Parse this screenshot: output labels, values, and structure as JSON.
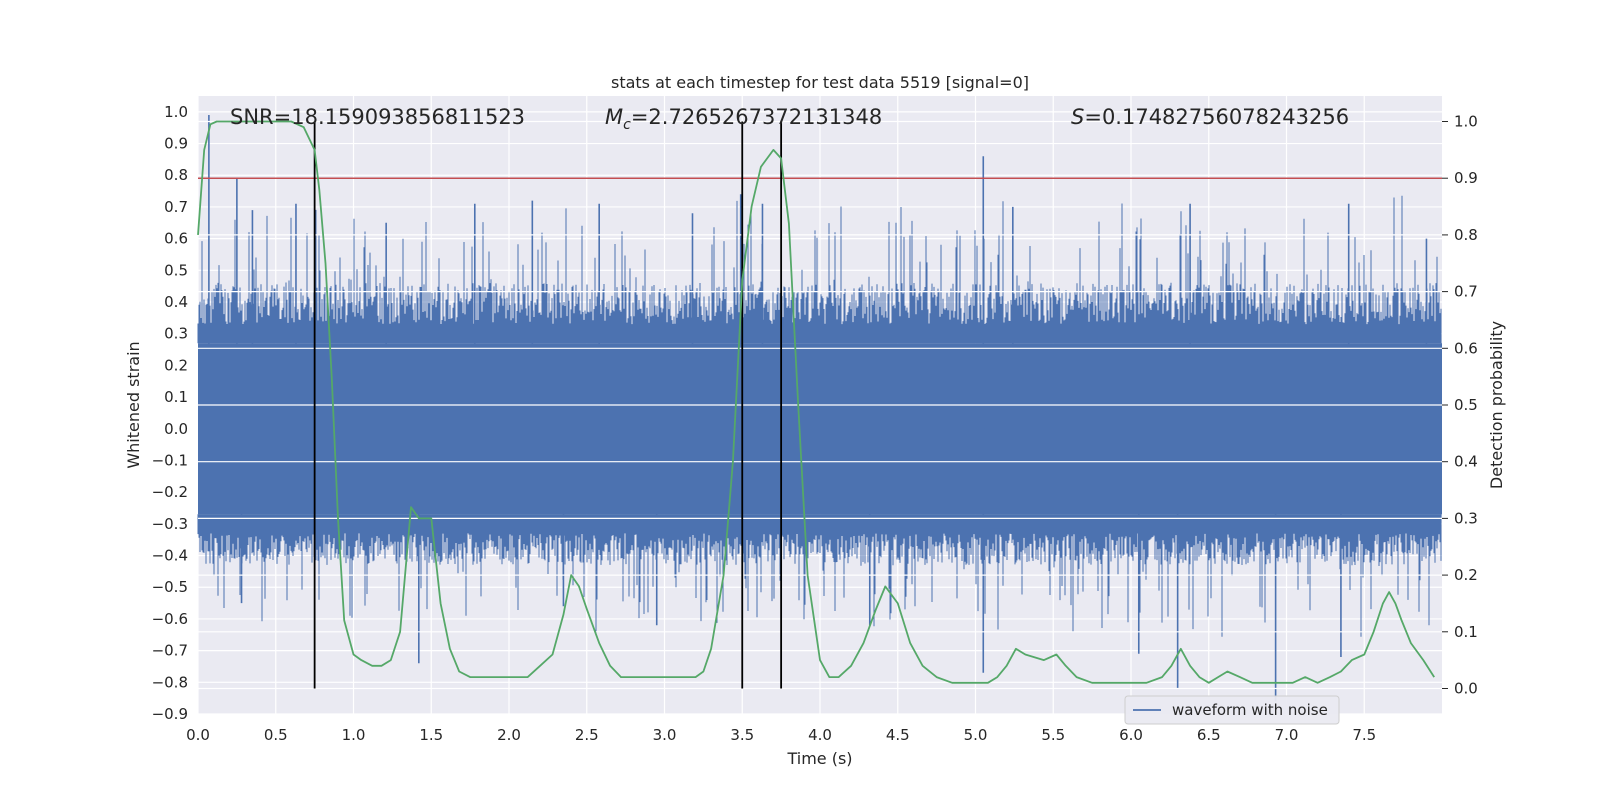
{
  "chart_data": {
    "type": "line",
    "title": "stats at each timestep for test data 5519 [signal=0]",
    "xlabel": "Time (s)",
    "ylabel": "Whitened strain",
    "y2label": "Detection probability",
    "xlim": [
      0.0,
      8.0
    ],
    "ylim": [
      -0.9,
      1.05
    ],
    "y2lim": [
      -0.045,
      1.045
    ],
    "grid": true,
    "x_ticks": [
      "0.0",
      "0.5",
      "1.0",
      "1.5",
      "2.0",
      "2.5",
      "3.0",
      "3.5",
      "4.0",
      "4.5",
      "5.0",
      "5.5",
      "6.0",
      "6.5",
      "7.0",
      "7.5"
    ],
    "y_ticks": [
      "1.0",
      "0.9",
      "0.8",
      "0.7",
      "0.6",
      "0.5",
      "0.4",
      "0.3",
      "0.2",
      "0.1",
      "0.0",
      "−0.1",
      "−0.2",
      "−0.3",
      "−0.4",
      "−0.5",
      "−0.6",
      "−0.7",
      "−0.8",
      "−0.9"
    ],
    "y2_ticks": [
      "1.0",
      "0.9",
      "0.8",
      "0.7",
      "0.6",
      "0.5",
      "0.4",
      "0.3",
      "0.2",
      "0.1",
      "0.0"
    ],
    "annotations": {
      "snr": "SNR=18.159093856811523",
      "mc_symbol": "M",
      "mc_subscript": "c",
      "mc_value": "=2.7265267372131348",
      "s_symbol": "S",
      "s_value": "=0.17482756078243256"
    },
    "legend": {
      "label": "waveform with noise",
      "placement": "lower-right"
    },
    "threshold": {
      "value": 0.9,
      "axis": "right",
      "color": "#c44e52"
    },
    "event_markers": [
      0.75,
      3.5,
      3.75
    ],
    "waveform": {
      "name": "waveform with noise",
      "color": "#4c72b0",
      "sample_rate_hz": 512,
      "core_band": [
        -0.27,
        0.27
      ],
      "spikes_high": [
        [
          0.07,
          0.99
        ],
        [
          0.25,
          0.79
        ],
        [
          0.35,
          0.69
        ],
        [
          0.63,
          0.71
        ],
        [
          1.21,
          0.65
        ],
        [
          1.78,
          0.71
        ],
        [
          2.15,
          0.72
        ],
        [
          2.58,
          0.71
        ],
        [
          3.18,
          0.68
        ],
        [
          3.49,
          0.74
        ],
        [
          3.63,
          0.71
        ],
        [
          5.05,
          0.86
        ],
        [
          5.24,
          0.7
        ],
        [
          6.38,
          0.71
        ],
        [
          7.4,
          0.71
        ],
        [
          7.9,
          0.6
        ]
      ],
      "spikes_low": [
        [
          0.28,
          -0.55
        ],
        [
          1.42,
          -0.74
        ],
        [
          2.35,
          -0.56
        ],
        [
          2.95,
          -0.62
        ],
        [
          4.32,
          -0.62
        ],
        [
          5.05,
          -0.77
        ],
        [
          6.05,
          -0.71
        ],
        [
          6.3,
          -0.82
        ],
        [
          6.93,
          -0.86
        ],
        [
          7.35,
          -0.72
        ]
      ]
    },
    "probability": {
      "color": "#55a868",
      "x": [
        0.0,
        0.04,
        0.08,
        0.12,
        0.2,
        0.3,
        0.4,
        0.5,
        0.55,
        0.6,
        0.68,
        0.75,
        0.78,
        0.82,
        0.86,
        0.9,
        0.94,
        1.0,
        1.05,
        1.12,
        1.18,
        1.24,
        1.3,
        1.37,
        1.42,
        1.5,
        1.56,
        1.62,
        1.68,
        1.75,
        1.85,
        2.0,
        2.06,
        2.12,
        2.2,
        2.28,
        2.35,
        2.4,
        2.45,
        2.5,
        2.58,
        2.65,
        2.72,
        2.8,
        2.9,
        3.0,
        3.1,
        3.2,
        3.25,
        3.3,
        3.38,
        3.44,
        3.5,
        3.56,
        3.62,
        3.7,
        3.75,
        3.8,
        3.86,
        3.92,
        4.0,
        4.06,
        4.12,
        4.2,
        4.28,
        4.36,
        4.42,
        4.5,
        4.58,
        4.66,
        4.75,
        4.85,
        5.0,
        5.08,
        5.14,
        5.2,
        5.26,
        5.32,
        5.44,
        5.52,
        5.58,
        5.65,
        5.75,
        5.9,
        6.0,
        6.1,
        6.2,
        6.26,
        6.32,
        6.38,
        6.44,
        6.5,
        6.56,
        6.62,
        6.7,
        6.78,
        6.88,
        6.96,
        7.04,
        7.12,
        7.2,
        7.28,
        7.35,
        7.42,
        7.5,
        7.56,
        7.62,
        7.66,
        7.7,
        7.74,
        7.8,
        7.88,
        7.95
      ],
      "y": [
        0.8,
        0.95,
        0.995,
        1.0,
        1.0,
        1.0,
        1.0,
        1.0,
        1.0,
        1.0,
        0.99,
        0.95,
        0.88,
        0.75,
        0.55,
        0.3,
        0.12,
        0.06,
        0.05,
        0.04,
        0.04,
        0.05,
        0.1,
        0.32,
        0.3,
        0.3,
        0.15,
        0.07,
        0.03,
        0.02,
        0.02,
        0.02,
        0.02,
        0.02,
        0.04,
        0.06,
        0.13,
        0.2,
        0.18,
        0.14,
        0.08,
        0.04,
        0.02,
        0.02,
        0.02,
        0.02,
        0.02,
        0.02,
        0.03,
        0.07,
        0.2,
        0.4,
        0.72,
        0.85,
        0.92,
        0.95,
        0.935,
        0.82,
        0.5,
        0.2,
        0.05,
        0.02,
        0.02,
        0.04,
        0.08,
        0.14,
        0.18,
        0.15,
        0.08,
        0.04,
        0.02,
        0.01,
        0.01,
        0.01,
        0.02,
        0.04,
        0.07,
        0.06,
        0.05,
        0.06,
        0.04,
        0.02,
        0.01,
        0.01,
        0.01,
        0.01,
        0.02,
        0.04,
        0.07,
        0.04,
        0.02,
        0.01,
        0.02,
        0.03,
        0.02,
        0.01,
        0.01,
        0.01,
        0.01,
        0.02,
        0.01,
        0.02,
        0.03,
        0.05,
        0.06,
        0.1,
        0.15,
        0.17,
        0.15,
        0.12,
        0.08,
        0.05,
        0.02
      ]
    }
  }
}
